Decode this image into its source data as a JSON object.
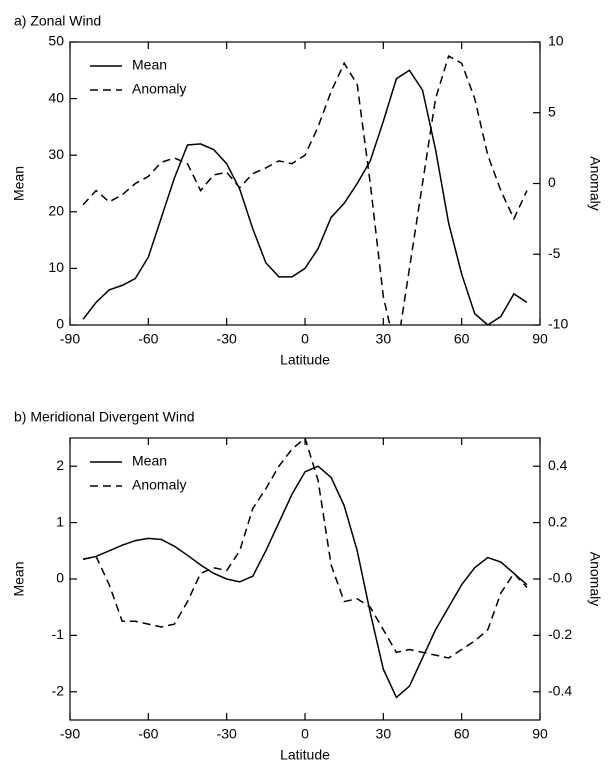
{
  "chart_data": [
    {
      "type": "line",
      "title": "a) Zonal Wind",
      "xlabel": "Latitude",
      "ylabel": "Mean",
      "y2label": "Anomaly",
      "x": [
        -85,
        -80,
        -75,
        -70,
        -65,
        -60,
        -55,
        -50,
        -45,
        -40,
        -35,
        -30,
        -25,
        -20,
        -15,
        -10,
        -5,
        0,
        5,
        10,
        15,
        20,
        25,
        30,
        35,
        40,
        45,
        50,
        55,
        60,
        65,
        70,
        75,
        80,
        85
      ],
      "xlim": [
        -90,
        90
      ],
      "xticks": [
        -90,
        -60,
        -30,
        0,
        30,
        60,
        90
      ],
      "ylim": [
        0,
        50
      ],
      "yticks": [
        0,
        10,
        20,
        30,
        40,
        50
      ],
      "y2lim": [
        -10,
        10
      ],
      "y2ticks": [
        -10,
        -5,
        0,
        5,
        10
      ],
      "legend": "upper left",
      "series": [
        {
          "name": "Mean",
          "color": "#000000",
          "linestyle": "solid",
          "values": [
            1,
            4,
            6.2,
            7,
            8.2,
            12,
            19,
            26,
            31.8,
            32,
            31,
            28.5,
            24,
            17,
            11,
            8.5,
            8.5,
            10,
            13.5,
            19,
            21.5,
            25,
            29,
            36,
            43.5,
            45,
            41.5,
            31,
            18,
            9,
            2,
            0,
            1.5,
            5.5,
            4
          ]
        },
        {
          "name": "Anomaly",
          "color": "#000000",
          "linestyle": "dashed",
          "axis": "y2",
          "values": [
            -1.5,
            -0.5,
            -1.3,
            -0.8,
            0,
            0.5,
            1.5,
            1.8,
            1.4,
            -0.5,
            0.6,
            0.8,
            -0.3,
            0.7,
            1.1,
            1.6,
            1.4,
            2,
            4,
            6.5,
            8.5,
            7,
            0,
            -8,
            -12,
            -6,
            0,
            6,
            9,
            8.5,
            6,
            2,
            -0.5,
            -2.5,
            -0.5
          ]
        }
      ]
    },
    {
      "type": "line",
      "title": "b) Meridional Divergent Wind",
      "xlabel": "Latitude",
      "ylabel": "Mean",
      "y2label": "Anomaly",
      "x": [
        -85,
        -80,
        -75,
        -70,
        -65,
        -60,
        -55,
        -50,
        -45,
        -40,
        -35,
        -30,
        -25,
        -20,
        -15,
        -10,
        -5,
        0,
        5,
        10,
        15,
        20,
        25,
        30,
        35,
        40,
        45,
        50,
        55,
        60,
        65,
        70,
        75,
        80,
        85
      ],
      "xlim": [
        -90,
        90
      ],
      "xticks": [
        -90,
        -60,
        -30,
        0,
        30,
        60,
        90
      ],
      "ylim": [
        -2.5,
        2.5
      ],
      "yticks": [
        -2,
        -1,
        0,
        1,
        2
      ],
      "y2lim": [
        -0.5,
        0.5
      ],
      "y2ticks": [
        -0.4,
        -0.2,
        {
          "value": 0,
          "label": "-0.0"
        },
        0.2,
        0.4
      ],
      "legend": "upper left",
      "series": [
        {
          "name": "Mean",
          "color": "#000000",
          "linestyle": "solid",
          "values": [
            0.35,
            0.4,
            0.5,
            0.6,
            0.68,
            0.72,
            0.7,
            0.58,
            0.42,
            0.25,
            0.1,
            0,
            -0.05,
            0.05,
            0.5,
            1.0,
            1.5,
            1.9,
            2.0,
            1.8,
            1.3,
            0.5,
            -0.6,
            -1.6,
            -2.1,
            -1.9,
            -1.4,
            -0.9,
            -0.5,
            -0.1,
            0.2,
            0.38,
            0.3,
            0.1,
            -0.1
          ]
        },
        {
          "name": "Anomaly",
          "color": "#000000",
          "linestyle": "dashed",
          "axis": "y2",
          "values": [
            0.07,
            0.08,
            -0.02,
            -0.15,
            -0.15,
            -0.16,
            -0.17,
            -0.16,
            -0.08,
            0.02,
            0.04,
            0.03,
            0.1,
            0.25,
            0.32,
            0.4,
            0.46,
            0.5,
            0.35,
            0.05,
            -0.08,
            -0.07,
            -0.1,
            -0.18,
            -0.26,
            -0.25,
            -0.26,
            -0.27,
            -0.28,
            -0.25,
            -0.22,
            -0.18,
            -0.05,
            0.02,
            -0.03
          ]
        }
      ]
    }
  ]
}
